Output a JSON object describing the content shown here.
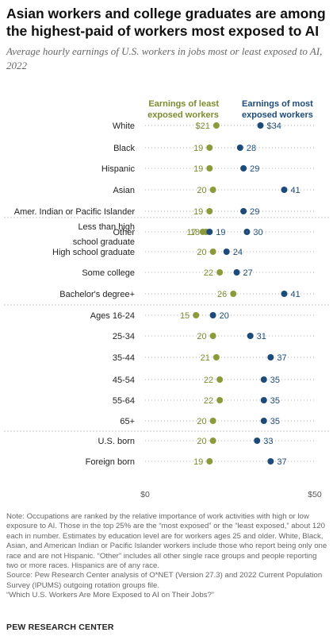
{
  "title": "Asian workers and college graduates are among the highest-paid of workers most exposed to AI",
  "subtitle": "Average hourly earnings of U.S. workers in jobs most or least exposed to AI, 2022",
  "colors": {
    "least": "#8c9a3a",
    "most": "#1c4a7a",
    "label_least": "#7d8b2e",
    "label_most": "#1c4a7a",
    "row_label": "#222222",
    "dotline": "#b0b0b0"
  },
  "chart_data": {
    "type": "dot",
    "xlim": [
      0,
      50
    ],
    "x_ticks": [
      {
        "value": 0,
        "label": "$0"
      },
      {
        "value": 50,
        "label": "$50"
      }
    ],
    "legend": [
      "Earnings of least exposed workers",
      "Earnings of most exposed workers"
    ],
    "series": [
      {
        "name": "Earnings of least exposed workers",
        "key": "least"
      },
      {
        "name": "Earnings of most exposed workers",
        "key": "most"
      }
    ],
    "groups": [
      {
        "rows": [
          {
            "label": "White",
            "least": 21,
            "most": 34,
            "least_label": "$21",
            "most_label": "$34"
          },
          {
            "label": "Black",
            "least": 19,
            "most": 28,
            "least_label": "19",
            "most_label": "28"
          },
          {
            "label": "Hispanic",
            "least": 19,
            "most": 29,
            "least_label": "19",
            "most_label": "29"
          },
          {
            "label": "Asian",
            "least": 20,
            "most": 41,
            "least_label": "20",
            "most_label": "41"
          },
          {
            "label": "Amer. Indian or Pacific Islander",
            "least": 19,
            "most": 29,
            "least_label": "19",
            "most_label": "29"
          },
          {
            "label": "Other",
            "least": 18,
            "most": 30,
            "least_label": "18",
            "most_label": "30"
          }
        ]
      },
      {
        "rows": [
          {
            "label": "Less than high school graduate",
            "least": 17,
            "most": 19,
            "least_label": "17",
            "most_label": "19"
          },
          {
            "label": "High school graduate",
            "least": 20,
            "most": 24,
            "least_label": "20",
            "most_label": "24"
          },
          {
            "label": "Some college",
            "least": 22,
            "most": 27,
            "least_label": "22",
            "most_label": "27"
          },
          {
            "label": "Bachelor's degree+",
            "least": 26,
            "most": 41,
            "least_label": "26",
            "most_label": "41"
          }
        ]
      },
      {
        "rows": [
          {
            "label": "Ages 16-24",
            "least": 15,
            "most": 20,
            "least_label": "15",
            "most_label": "20"
          },
          {
            "label": "25-34",
            "least": 20,
            "most": 31,
            "least_label": "20",
            "most_label": "31"
          },
          {
            "label": "35-44",
            "least": 21,
            "most": 37,
            "least_label": "21",
            "most_label": "37"
          },
          {
            "label": "45-54",
            "least": 22,
            "most": 35,
            "least_label": "22",
            "most_label": "35"
          },
          {
            "label": "55-64",
            "least": 22,
            "most": 35,
            "least_label": "22",
            "most_label": "35"
          },
          {
            "label": "65+",
            "least": 20,
            "most": 35,
            "least_label": "20",
            "most_label": "35"
          }
        ]
      },
      {
        "rows": [
          {
            "label": "U.S. born",
            "least": 20,
            "most": 33,
            "least_label": "20",
            "most_label": "33"
          },
          {
            "label": "Foreign born",
            "least": 19,
            "most": 37,
            "least_label": "19",
            "most_label": "37"
          }
        ]
      }
    ]
  },
  "notes": [
    "Note: Occupations are ranked by the relative importance of work activities with high or low exposure to AI. Those in the top 25% are the “most exposed” or the “least exposed,” about 120 each in number. Estimates by education level are for workers ages 25 and older. White, Black, Asian, and American Indian or Pacific Islander workers include those who report being only one race and are not Hispanic. “Other” includes all other single race groups and people reporting two or more races. Hispanics are of any race.",
    "Source: Pew Research Center analysis of O*NET (Version 27.3) and 2022 Current Population Survey (IPUMS) outgoing rotation groups file.",
    "“Which U.S. Workers Are More Exposed to AI on Their Jobs?”"
  ],
  "brand": "PEW RESEARCH CENTER"
}
